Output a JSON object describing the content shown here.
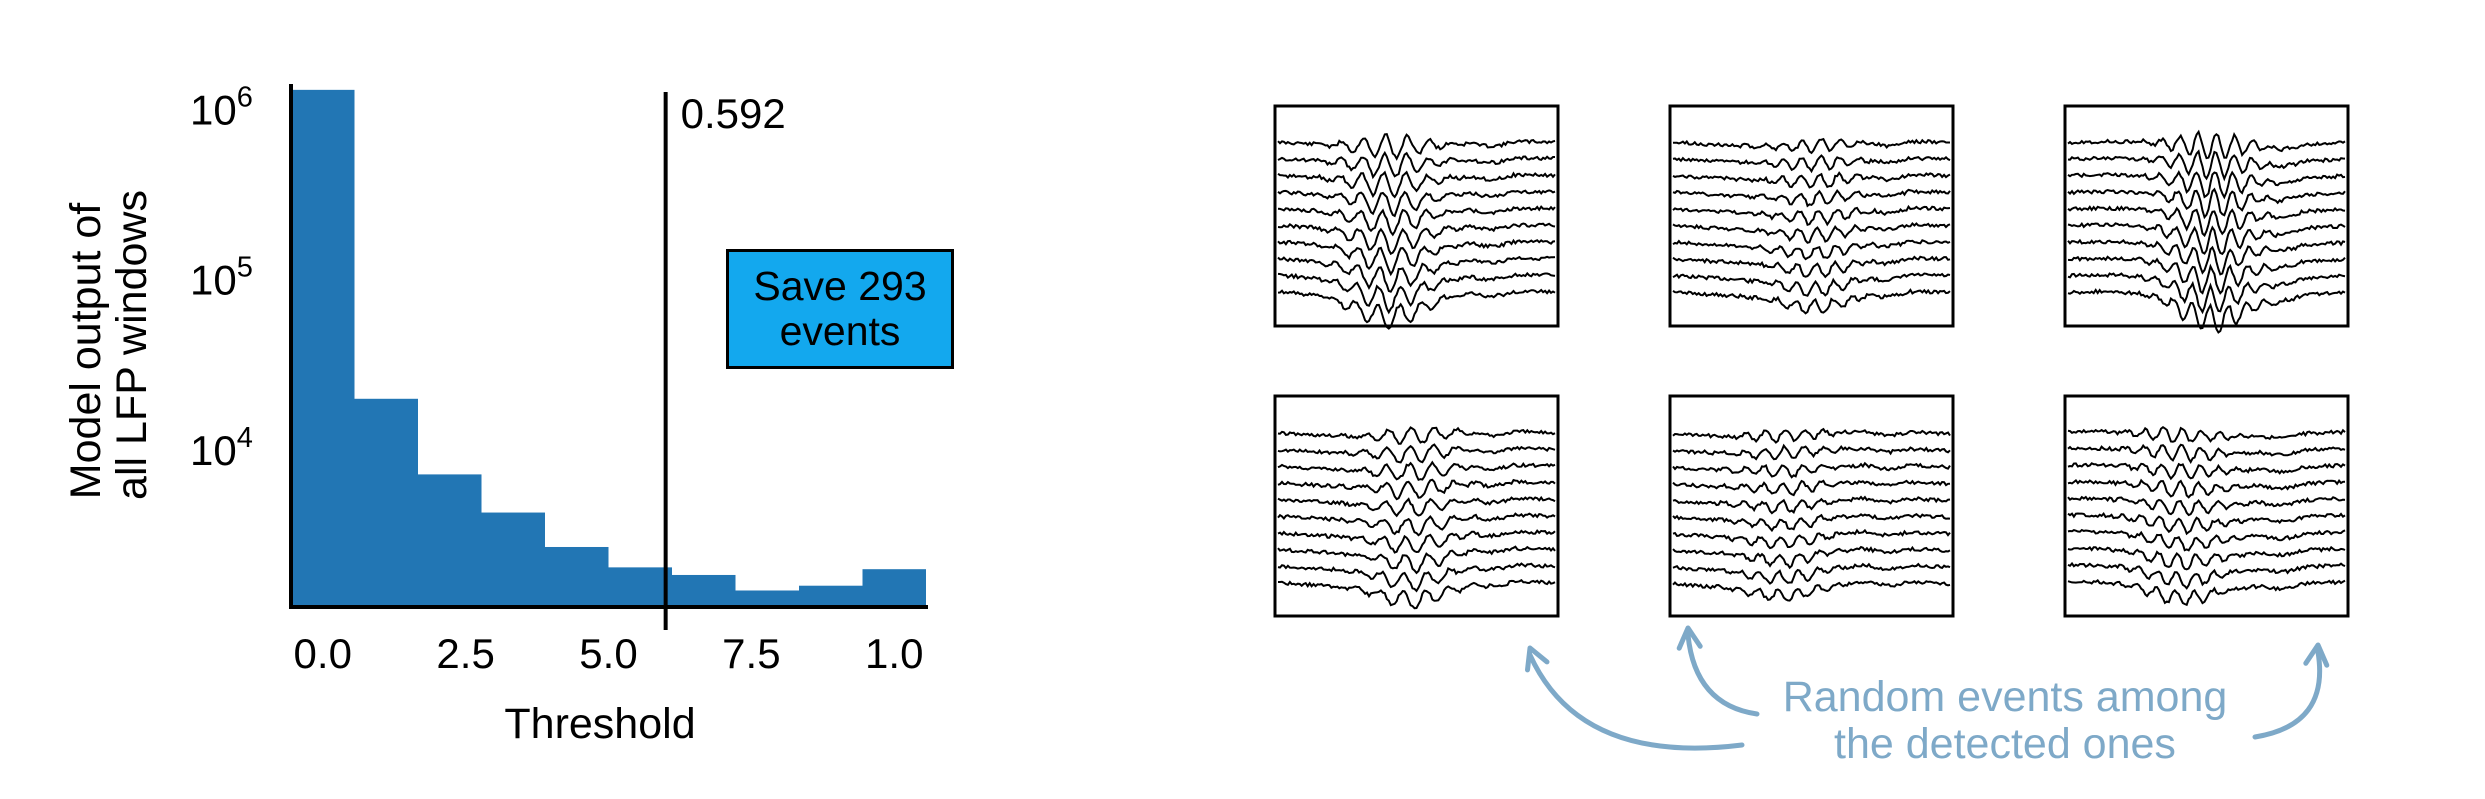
{
  "chart_data": {
    "type": "bar",
    "ylabel": "Model output of\nall LFP windows",
    "xlabel": "Threshold",
    "yscale": "log",
    "ylim": [
      1200,
      1700000
    ],
    "yticks": [
      {
        "base": "10",
        "exp": "6",
        "value": 1000000
      },
      {
        "base": "10",
        "exp": "5",
        "value": 100000
      },
      {
        "base": "10",
        "exp": "4",
        "value": 10000
      }
    ],
    "xlim": [
      -0.5,
      9.5
    ],
    "xticks": [
      {
        "label": "0.0",
        "pos": 0
      },
      {
        "label": "2.5",
        "pos": 2.25
      },
      {
        "label": "5.0",
        "pos": 4.5
      },
      {
        "label": "7.5",
        "pos": 6.75
      },
      {
        "label": "1.0",
        "pos": 9
      }
    ],
    "bin_edges": [
      -0.5,
      0.5,
      1.5,
      2.5,
      3.5,
      4.5,
      5.5,
      6.5,
      7.5,
      8.5,
      9.5
    ],
    "values": [
      1300000,
      20000,
      7200,
      4300,
      2700,
      2050,
      1850,
      1500,
      1600,
      2000
    ],
    "threshold": {
      "label": "0.592",
      "pos": 5.4
    },
    "bar_color": "#2276b4"
  },
  "save_button": {
    "label": "Save 293\nevents",
    "color": "#13a8ee"
  },
  "annotation": {
    "text_line1": "Random events among",
    "text_line2": "the detected ones",
    "color": "#7ea9c8"
  },
  "events": [
    {
      "traces": 10,
      "seed": 11,
      "amp": 1.0
    },
    {
      "traces": 10,
      "seed": 23,
      "amp": 0.55
    },
    {
      "traces": 10,
      "seed": 37,
      "amp": 1.1
    },
    {
      "traces": 10,
      "seed": 41,
      "amp": 0.7
    },
    {
      "traces": 10,
      "seed": 53,
      "amp": 0.5
    },
    {
      "traces": 10,
      "seed": 67,
      "amp": 0.6
    }
  ]
}
